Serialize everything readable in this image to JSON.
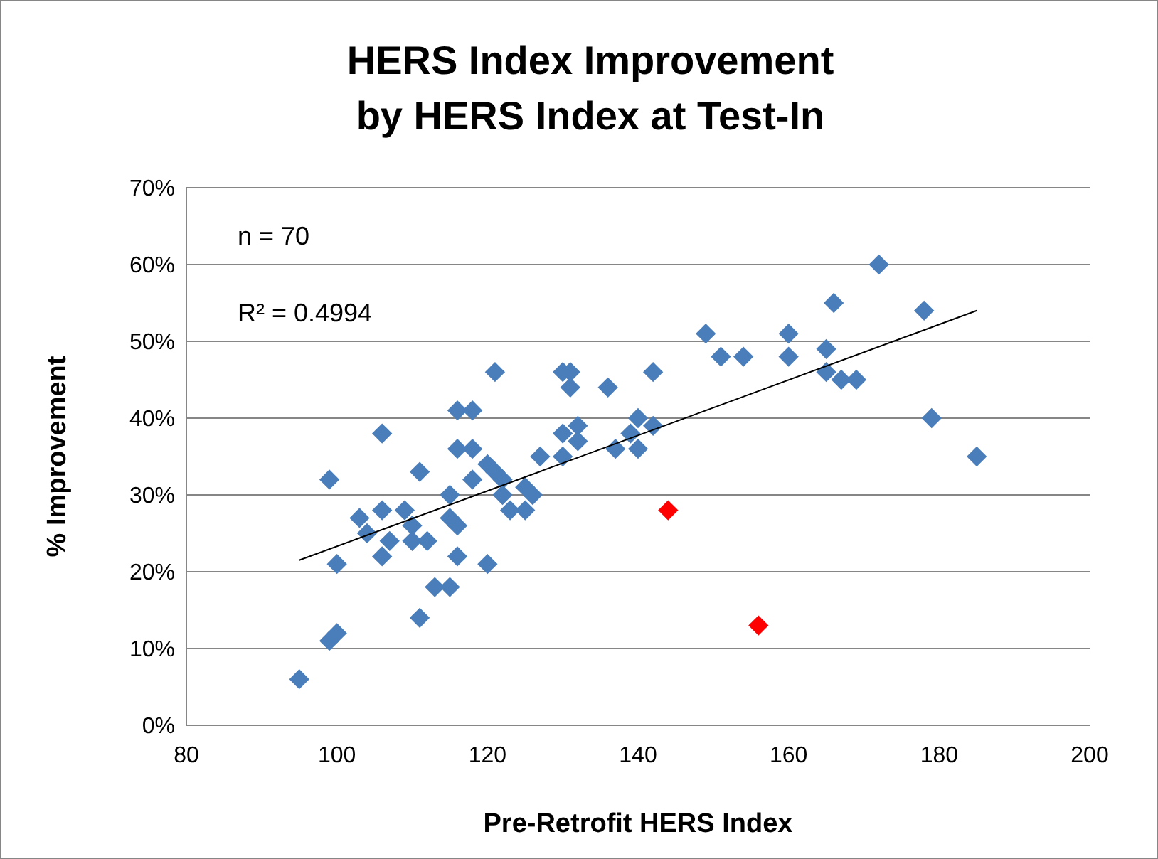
{
  "chart_data": {
    "type": "scatter",
    "title": "HERS Index Improvement\nby HERS Index at Test-In",
    "xlabel": "Pre-Retrofit HERS Index",
    "ylabel": "% Improvement",
    "annotations": [
      "n = 70",
      "R² = 0.4994"
    ],
    "xlim": [
      80,
      200
    ],
    "xticks": [
      80,
      100,
      120,
      140,
      160,
      180,
      200
    ],
    "ylim": [
      0,
      70
    ],
    "yticks": [
      {
        "value": 0,
        "label": "0%"
      },
      {
        "value": 10,
        "label": "10%"
      },
      {
        "value": 20,
        "label": "20%"
      },
      {
        "value": 30,
        "label": "30%"
      },
      {
        "value": 40,
        "label": "40%"
      },
      {
        "value": 50,
        "label": "50%"
      },
      {
        "value": 60,
        "label": "60%"
      },
      {
        "value": 70,
        "label": "70%"
      }
    ],
    "grid": "y",
    "series": [
      {
        "marker": "diamond",
        "color": "#4a7ebb",
        "x": [
          95,
          99,
          100,
          100,
          99,
          103,
          104,
          106,
          106,
          106,
          107,
          109,
          110,
          110,
          111,
          111,
          112,
          113,
          115,
          115,
          115,
          116,
          116,
          116,
          118,
          116,
          118,
          118,
          120,
          121,
          120,
          121,
          122,
          122,
          123,
          125,
          125,
          126,
          127,
          130,
          130,
          132,
          132,
          130,
          131,
          131,
          136,
          137,
          139,
          140,
          140,
          142,
          142,
          149,
          151,
          154,
          160,
          160,
          165,
          165,
          167,
          169,
          172,
          166,
          178,
          179,
          185
        ],
        "values": [
          6,
          11,
          12,
          21,
          32,
          27,
          25,
          38,
          28,
          22,
          24,
          28,
          26,
          24,
          33,
          14,
          24,
          18,
          30,
          18,
          27,
          26,
          22,
          41,
          41,
          36,
          36,
          32,
          34,
          33,
          21,
          46,
          32,
          30,
          28,
          28,
          31,
          30,
          35,
          35,
          38,
          39,
          37,
          46,
          46,
          44,
          44,
          36,
          38,
          40,
          36,
          39,
          46,
          51,
          48,
          48,
          51,
          48,
          49,
          46,
          45,
          45,
          60,
          55,
          54,
          40,
          35
        ]
      },
      {
        "marker": "diamond",
        "color": "#ff0000",
        "x": [
          144,
          156
        ],
        "values": [
          28,
          13
        ]
      },
      {
        "type": "line",
        "marker": "none",
        "color": "#000000",
        "x": [
          95,
          185
        ],
        "values": [
          21.5,
          54
        ]
      }
    ]
  }
}
